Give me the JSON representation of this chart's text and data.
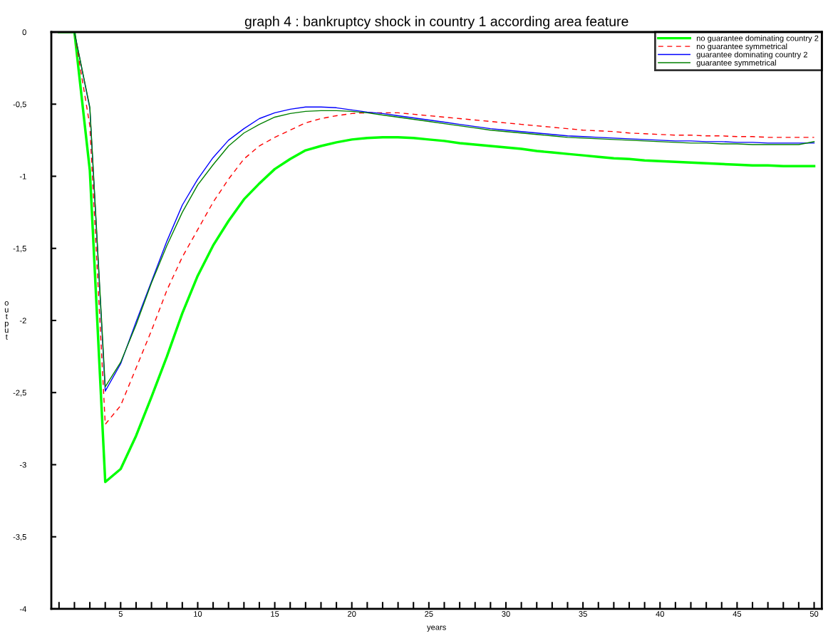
{
  "chart_data": {
    "type": "line",
    "title": "graph 4 : bankruptcy shock in country 1 according area feature",
    "xlabel": "years",
    "ylabel": "output",
    "x": [
      1,
      2,
      3,
      4,
      5,
      6,
      7,
      8,
      9,
      10,
      11,
      12,
      13,
      14,
      15,
      16,
      17,
      18,
      19,
      20,
      21,
      22,
      23,
      24,
      25,
      26,
      27,
      28,
      29,
      30,
      31,
      32,
      33,
      34,
      35,
      36,
      37,
      38,
      39,
      40,
      41,
      42,
      43,
      44,
      45,
      46,
      47,
      48,
      49,
      50
    ],
    "series": [
      {
        "name": "no guarantee dominating country 2",
        "color": "#00ff00",
        "line_style": "solid",
        "values": [
          0,
          0,
          -0.96,
          -3.12,
          -3.03,
          -2.8,
          -2.53,
          -2.25,
          -1.95,
          -1.69,
          -1.48,
          -1.31,
          -1.16,
          -1.05,
          -0.95,
          -0.88,
          -0.82,
          -0.79,
          -0.765,
          -0.745,
          -0.735,
          -0.73,
          -0.73,
          -0.735,
          -0.745,
          -0.755,
          -0.77,
          -0.78,
          -0.79,
          -0.8,
          -0.81,
          -0.825,
          -0.835,
          -0.845,
          -0.855,
          -0.865,
          -0.875,
          -0.88,
          -0.89,
          -0.895,
          -0.9,
          -0.905,
          -0.91,
          -0.915,
          -0.92,
          -0.925,
          -0.925,
          -0.93,
          -0.93,
          -0.93
        ]
      },
      {
        "name": "no guarantee symmetrical",
        "color": "#ff0000",
        "line_style": "dashed",
        "values": [
          0,
          0,
          -0.65,
          -2.72,
          -2.59,
          -2.33,
          -2.07,
          -1.79,
          -1.56,
          -1.37,
          -1.18,
          -1.02,
          -0.88,
          -0.79,
          -0.73,
          -0.68,
          -0.63,
          -0.6,
          -0.58,
          -0.565,
          -0.56,
          -0.56,
          -0.56,
          -0.57,
          -0.58,
          -0.59,
          -0.6,
          -0.61,
          -0.62,
          -0.63,
          -0.64,
          -0.65,
          -0.66,
          -0.67,
          -0.68,
          -0.685,
          -0.69,
          -0.7,
          -0.705,
          -0.71,
          -0.715,
          -0.715,
          -0.72,
          -0.72,
          -0.725,
          -0.725,
          -0.73,
          -0.73,
          -0.73,
          -0.73
        ]
      },
      {
        "name": "guarantee dominating country 2",
        "color": "#0000ff",
        "line_style": "solid",
        "values": [
          0,
          0,
          -0.53,
          -2.49,
          -2.3,
          -2.01,
          -1.73,
          -1.45,
          -1.2,
          -1.02,
          -0.87,
          -0.75,
          -0.67,
          -0.6,
          -0.56,
          -0.535,
          -0.52,
          -0.52,
          -0.525,
          -0.54,
          -0.555,
          -0.565,
          -0.58,
          -0.595,
          -0.61,
          -0.625,
          -0.64,
          -0.655,
          -0.67,
          -0.68,
          -0.69,
          -0.7,
          -0.71,
          -0.72,
          -0.725,
          -0.73,
          -0.735,
          -0.74,
          -0.745,
          -0.75,
          -0.755,
          -0.755,
          -0.76,
          -0.76,
          -0.765,
          -0.765,
          -0.77,
          -0.77,
          -0.77,
          -0.77
        ]
      },
      {
        "name": "guarantee symmetrical",
        "color": "#008000",
        "line_style": "solid",
        "values": [
          0,
          0,
          -0.52,
          -2.46,
          -2.29,
          -2.03,
          -1.74,
          -1.48,
          -1.25,
          -1.06,
          -0.92,
          -0.79,
          -0.7,
          -0.64,
          -0.59,
          -0.565,
          -0.55,
          -0.545,
          -0.545,
          -0.55,
          -0.56,
          -0.575,
          -0.59,
          -0.605,
          -0.62,
          -0.635,
          -0.65,
          -0.665,
          -0.68,
          -0.69,
          -0.7,
          -0.71,
          -0.72,
          -0.73,
          -0.735,
          -0.74,
          -0.745,
          -0.75,
          -0.755,
          -0.76,
          -0.765,
          -0.77,
          -0.77,
          -0.775,
          -0.775,
          -0.78,
          -0.78,
          -0.78,
          -0.78,
          -0.76
        ]
      }
    ],
    "xlim": [
      0.5,
      50.5
    ],
    "xticks": [
      {
        "value": 1,
        "label": null
      },
      {
        "value": 2,
        "label": null
      },
      {
        "value": 3,
        "label": null
      },
      {
        "value": 4,
        "label": null
      },
      5,
      {
        "value": 6,
        "label": null
      },
      {
        "value": 7,
        "label": null
      },
      {
        "value": 8,
        "label": null
      },
      {
        "value": 9,
        "label": null
      },
      10,
      {
        "value": 11,
        "label": null
      },
      {
        "value": 12,
        "label": null
      },
      {
        "value": 13,
        "label": null
      },
      {
        "value": 14,
        "label": null
      },
      15,
      {
        "value": 16,
        "label": null
      },
      {
        "value": 17,
        "label": null
      },
      {
        "value": 18,
        "label": null
      },
      {
        "value": 19,
        "label": null
      },
      20,
      {
        "value": 21,
        "label": null
      },
      {
        "value": 22,
        "label": null
      },
      {
        "value": 23,
        "label": null
      },
      {
        "value": 24,
        "label": null
      },
      25,
      {
        "value": 26,
        "label": null
      },
      {
        "value": 27,
        "label": null
      },
      {
        "value": 28,
        "label": null
      },
      {
        "value": 29,
        "label": null
      },
      30,
      {
        "value": 31,
        "label": null
      },
      {
        "value": 32,
        "label": null
      },
      {
        "value": 33,
        "label": null
      },
      {
        "value": 34,
        "label": null
      },
      35,
      {
        "value": 36,
        "label": null
      },
      {
        "value": 37,
        "label": null
      },
      {
        "value": 38,
        "label": null
      },
      {
        "value": 39,
        "label": null
      },
      40,
      {
        "value": 41,
        "label": null
      },
      {
        "value": 42,
        "label": null
      },
      {
        "value": 43,
        "label": null
      },
      {
        "value": 44,
        "label": null
      },
      45,
      {
        "value": 46,
        "label": null
      },
      {
        "value": 47,
        "label": null
      },
      {
        "value": 48,
        "label": null
      },
      {
        "value": 49,
        "label": null
      },
      50
    ],
    "ylim": [
      -4,
      0
    ],
    "yticks": [
      0,
      {
        "value": -0.5,
        "label": "-0,5"
      },
      -1,
      {
        "value": -1.5,
        "label": "-1,5"
      },
      -2,
      {
        "value": -2.5,
        "label": "-2,5"
      },
      -3,
      {
        "value": -3.5,
        "label": "-3,5"
      },
      -4
    ],
    "grid": false,
    "legend": "top right",
    "marker": "none"
  }
}
